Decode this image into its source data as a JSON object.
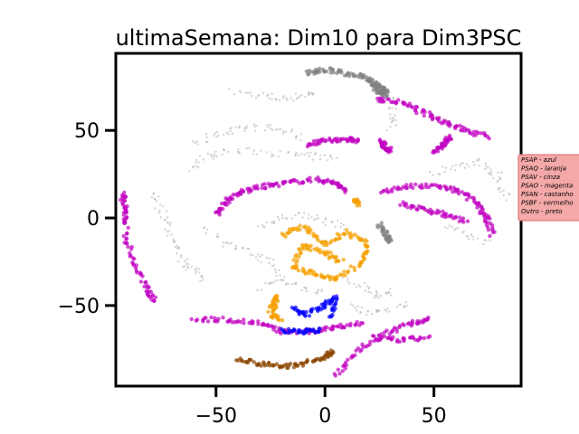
{
  "chart_data": {
    "type": "scatter",
    "title": "ultimaSemana: Dim10 para Dim3PSC",
    "xlabel": "",
    "ylabel": "",
    "xlim": [
      -96,
      90
    ],
    "ylim": [
      -96,
      94
    ],
    "xticks": [
      -50,
      0,
      50
    ],
    "yticks": [
      -50,
      0,
      50
    ],
    "xtick_labels": [
      "−50",
      "0",
      "50"
    ],
    "ytick_labels": [
      "−50",
      "0",
      "50"
    ],
    "grid": false,
    "legend_placement": "right",
    "legend": [
      {
        "label": "PSAP - azul",
        "color": "#0000ff"
      },
      {
        "label": "PSAQ - laranja",
        "color": "#f5a000"
      },
      {
        "label": "PSAV - cinza",
        "color": "#808080"
      },
      {
        "label": "PSAO - magenta",
        "color": "#c000c0"
      },
      {
        "label": "PSAN - castanho",
        "color": "#8b4500"
      },
      {
        "label": "PSBF - vermelho",
        "color": "#ff0000"
      },
      {
        "label": "Outro - preto",
        "color": "#000000"
      }
    ],
    "series": [
      {
        "color": "#c000c0",
        "paths": [
          [
            [
              -50,
              2
            ],
            [
              -45,
              10
            ],
            [
              -38,
              15
            ],
            [
              -28,
              18
            ],
            [
              -18,
              20
            ],
            [
              -5,
              22
            ],
            [
              5,
              20
            ],
            [
              10,
              15
            ]
          ],
          [
            [
              -8,
              42
            ],
            [
              0,
              44
            ],
            [
              10,
              45
            ],
            [
              15,
              44
            ]
          ],
          [
            [
              25,
              44
            ],
            [
              28,
              40
            ],
            [
              30,
              38
            ]
          ],
          [
            [
              23,
              68
            ],
            [
              35,
              66
            ],
            [
              45,
              60
            ],
            [
              55,
              55
            ],
            [
              65,
              50
            ],
            [
              75,
              46
            ]
          ],
          [
            [
              50,
              38
            ],
            [
              55,
              42
            ],
            [
              57,
              46
            ]
          ],
          [
            [
              26,
              15
            ],
            [
              38,
              18
            ],
            [
              52,
              18
            ],
            [
              62,
              15
            ],
            [
              70,
              8
            ],
            [
              74,
              0
            ],
            [
              77,
              -10
            ]
          ],
          [
            [
              35,
              8
            ],
            [
              45,
              5
            ],
            [
              55,
              2
            ],
            [
              65,
              -2
            ]
          ],
          [
            [
              -93,
              14
            ],
            [
              -92,
              5
            ],
            [
              -91,
              -5
            ]
          ],
          [
            [
              -92,
              -8
            ],
            [
              -88,
              -25
            ],
            [
              -82,
              -40
            ],
            [
              -78,
              -47
            ]
          ],
          [
            [
              -60,
              -58
            ],
            [
              -45,
              -58
            ],
            [
              -30,
              -60
            ],
            [
              -20,
              -65
            ],
            [
              -5,
              -65
            ],
            [
              5,
              -62
            ],
            [
              18,
              -60
            ]
          ],
          [
            [
              5,
              -90
            ],
            [
              15,
              -76
            ],
            [
              28,
              -66
            ],
            [
              40,
              -60
            ],
            [
              48,
              -58
            ]
          ],
          [
            [
              22,
              -68
            ],
            [
              35,
              -70
            ],
            [
              48,
              -68
            ]
          ]
        ]
      },
      {
        "color": "#f5a000",
        "paths": [
          [
            [
              -20,
              -10
            ],
            [
              -10,
              -5
            ],
            [
              0,
              -15
            ],
            [
              10,
              -8
            ],
            [
              20,
              -15
            ],
            [
              18,
              -25
            ],
            [
              5,
              -35
            ],
            [
              -5,
              -32
            ],
            [
              -15,
              -28
            ],
            [
              -10,
              -15
            ],
            [
              0,
              -20
            ],
            [
              8,
              -25
            ]
          ],
          [
            [
              -25,
              -50
            ],
            [
              -22,
              -45
            ],
            [
              -25,
              -55
            ],
            [
              -20,
              -58
            ]
          ],
          [
            [
              14,
              10
            ],
            [
              16,
              8
            ]
          ]
        ]
      },
      {
        "color": "#0000ff",
        "paths": [
          [
            [
              -15,
              -52
            ],
            [
              -8,
              -55
            ],
            [
              0,
              -50
            ],
            [
              5,
              -45
            ],
            [
              2,
              -58
            ]
          ],
          [
            [
              -20,
              -64
            ],
            [
              -10,
              -65
            ],
            [
              -2,
              -64
            ]
          ]
        ]
      },
      {
        "color": "#8b4500",
        "paths": [
          [
            [
              -40,
              -80
            ],
            [
              -30,
              -83
            ],
            [
              -20,
              -85
            ],
            [
              -10,
              -83
            ],
            [
              0,
              -80
            ],
            [
              4,
              -76
            ]
          ]
        ]
      },
      {
        "color": "#808080",
        "paths": [
          [
            [
              -8,
              83
            ],
            [
              0,
              85
            ],
            [
              10,
              82
            ],
            [
              20,
              80
            ],
            [
              25,
              75
            ],
            [
              28,
              72
            ]
          ],
          [
            [
              20,
              78
            ],
            [
              25,
              72
            ],
            [
              28,
              70
            ]
          ],
          [
            [
              25,
              -4
            ],
            [
              28,
              -10
            ],
            [
              30,
              -14
            ]
          ]
        ]
      },
      {
        "color": "#c8c8c8",
        "paths": [
          [
            [
              -42,
              72
            ],
            [
              -30,
              70
            ],
            [
              -20,
              68
            ],
            [
              -10,
              70
            ],
            [
              -5,
              72
            ]
          ],
          [
            [
              -60,
              42
            ],
            [
              -50,
              48
            ],
            [
              -40,
              50
            ],
            [
              -30,
              52
            ],
            [
              -20,
              50
            ],
            [
              -10,
              45
            ]
          ],
          [
            [
              -62,
              28
            ],
            [
              -55,
              35
            ],
            [
              -45,
              38
            ],
            [
              -30,
              38
            ],
            [
              -15,
              36
            ],
            [
              -5,
              35
            ],
            [
              5,
              34
            ]
          ],
          [
            [
              -80,
              15
            ],
            [
              -75,
              5
            ],
            [
              -72,
              -5
            ],
            [
              -70,
              -15
            ],
            [
              -65,
              -25
            ],
            [
              -60,
              -30
            ],
            [
              -55,
              -35
            ]
          ],
          [
            [
              -55,
              -5
            ],
            [
              -45,
              -15
            ],
            [
              -35,
              -20
            ],
            [
              -25,
              -25
            ],
            [
              -20,
              -35
            ]
          ],
          [
            [
              -30,
              -5
            ],
            [
              -20,
              0
            ],
            [
              -10,
              2
            ],
            [
              0,
              -2
            ],
            [
              10,
              -5
            ]
          ],
          [
            [
              30,
              68
            ],
            [
              32,
              58
            ],
            [
              30,
              50
            ]
          ],
          [
            [
              50,
              25
            ],
            [
              60,
              30
            ],
            [
              70,
              32
            ],
            [
              80,
              25
            ]
          ],
          [
            [
              75,
              28
            ],
            [
              80,
              20
            ],
            [
              85,
              10
            ]
          ],
          [
            [
              55,
              -5
            ],
            [
              65,
              -10
            ],
            [
              75,
              -15
            ]
          ],
          [
            [
              10,
              -35
            ],
            [
              20,
              -40
            ],
            [
              25,
              -45
            ],
            [
              32,
              -40
            ]
          ],
          [
            [
              12,
              -50
            ],
            [
              20,
              -55
            ],
            [
              30,
              -52
            ],
            [
              40,
              -48
            ]
          ],
          [
            [
              -30,
              -40
            ],
            [
              -20,
              -35
            ],
            [
              -10,
              -40
            ],
            [
              0,
              -42
            ]
          ]
        ]
      }
    ]
  }
}
